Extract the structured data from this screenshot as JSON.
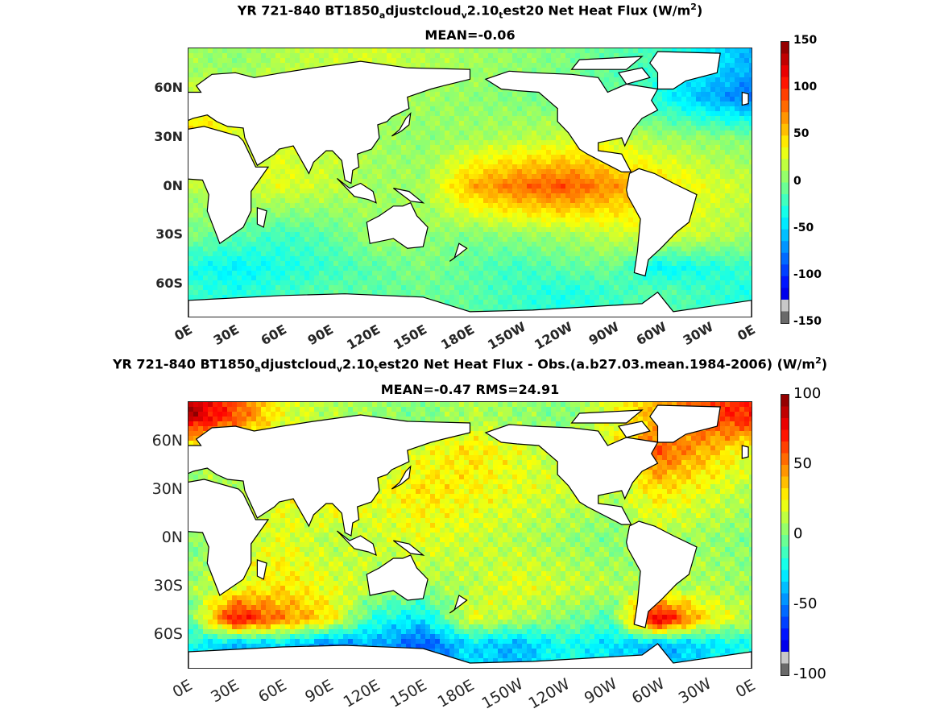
{
  "chart_data": [
    {
      "type": "heatmap",
      "title_parts": {
        "pre": "YR 721-840 BT1850",
        "sub1": "a",
        "mid1": "djustcloud",
        "sub2": "v",
        "mid2": "2.10",
        "sub3": "t",
        "mid3": "est20  Net Heat Flux (W/m",
        "sup": "2",
        "post": ")"
      },
      "subtitle": "MEAN=-0.06",
      "y_ticks": [
        "60N",
        "30N",
        "0N",
        "30S",
        "60S"
      ],
      "y_tick_values": [
        60,
        30,
        0,
        -30,
        -60
      ],
      "ylim": [
        -80,
        85
      ],
      "x_ticks": [
        "0E",
        "30E",
        "60E",
        "90E",
        "120E",
        "150E",
        "180E",
        "150W",
        "120W",
        "90W",
        "60W",
        "30W",
        "0E"
      ],
      "x_tick_values": [
        0,
        30,
        60,
        90,
        120,
        150,
        180,
        210,
        240,
        270,
        300,
        330,
        360
      ],
      "xlim": [
        0,
        360
      ],
      "colorbar": {
        "ticks": [
          "150",
          "100",
          "50",
          "0",
          "-50",
          "-100",
          "-150"
        ],
        "tick_values": [
          150,
          100,
          50,
          0,
          -50,
          -100,
          -150
        ],
        "range": [
          -150,
          150
        ]
      },
      "values": [
        [
          10,
          5,
          15,
          20,
          25,
          15,
          10,
          5,
          0,
          -10,
          -20,
          -40,
          -60
        ],
        [
          20,
          25,
          30,
          20,
          15,
          10,
          5,
          0,
          -5,
          -10,
          -30,
          -60,
          -80
        ],
        [
          60,
          30,
          25,
          20,
          10,
          5,
          10,
          15,
          20,
          25,
          10,
          5,
          0
        ],
        [
          15,
          20,
          30,
          20,
          10,
          10,
          60,
          80,
          90,
          70,
          50,
          30,
          20
        ],
        [
          0,
          -10,
          -20,
          -10,
          10,
          5,
          0,
          5,
          10,
          20,
          30,
          20,
          10
        ],
        [
          -30,
          -40,
          -30,
          -20,
          -10,
          0,
          -10,
          -20,
          -10,
          -5,
          -40,
          -30,
          -20
        ],
        [
          -20,
          -30,
          -20,
          -10,
          -10,
          -5,
          -10,
          -20,
          -30,
          -20,
          -10,
          -20,
          -30
        ]
      ],
      "values_lat": [
        75,
        55,
        30,
        0,
        -30,
        -50,
        -65
      ],
      "values_lon": [
        0,
        30,
        60,
        90,
        120,
        150,
        180,
        210,
        240,
        270,
        300,
        330,
        360
      ]
    },
    {
      "type": "heatmap",
      "title_parts": {
        "pre": "YR 721-840 BT1850",
        "sub1": "a",
        "mid1": "djustcloud",
        "sub2": "v",
        "mid2": "2.10",
        "sub3": "t",
        "mid3": "est20  Net Heat Flux - Obs.(a.b27.03.mean.1984-2006) (W/m",
        "sup": "2",
        "post": ")"
      },
      "subtitle": "MEAN=-0.47 RMS=24.91",
      "y_ticks": [
        "60N",
        "30N",
        "0N",
        "30S",
        "60S"
      ],
      "y_tick_values": [
        60,
        30,
        0,
        -30,
        -60
      ],
      "ylim": [
        -80,
        85
      ],
      "x_ticks": [
        "0E",
        "30E",
        "60E",
        "90E",
        "120E",
        "150E",
        "180E",
        "150W",
        "120W",
        "90W",
        "60W",
        "30W",
        "0E"
      ],
      "x_tick_values": [
        0,
        30,
        60,
        90,
        120,
        150,
        180,
        210,
        240,
        270,
        300,
        330,
        360
      ],
      "xlim": [
        0,
        360
      ],
      "colorbar": {
        "ticks": [
          "100",
          "50",
          "0",
          "-50",
          "-100"
        ],
        "tick_values": [
          100,
          50,
          0,
          -50,
          -100
        ],
        "range": [
          -100,
          100
        ]
      },
      "values": [
        [
          90,
          60,
          20,
          10,
          5,
          0,
          10,
          5,
          0,
          20,
          40,
          60,
          70
        ],
        [
          10,
          5,
          10,
          15,
          10,
          20,
          30,
          20,
          10,
          20,
          60,
          40,
          20
        ],
        [
          5,
          10,
          20,
          30,
          20,
          30,
          25,
          20,
          15,
          10,
          30,
          20,
          10
        ],
        [
          0,
          10,
          20,
          10,
          15,
          20,
          15,
          10,
          5,
          0,
          10,
          5,
          0
        ],
        [
          5,
          20,
          30,
          20,
          10,
          5,
          10,
          20,
          15,
          10,
          5,
          10,
          5
        ],
        [
          -10,
          80,
          50,
          30,
          -20,
          -30,
          20,
          10,
          0,
          -10,
          90,
          30,
          10
        ],
        [
          -20,
          -40,
          -30,
          -50,
          -40,
          -60,
          -30,
          -40,
          -20,
          -30,
          -40,
          -30,
          -20
        ]
      ],
      "values_lat": [
        75,
        55,
        30,
        0,
        -30,
        -50,
        -65
      ],
      "values_lon": [
        0,
        30,
        60,
        90,
        120,
        150,
        180,
        210,
        240,
        270,
        300,
        330,
        360
      ]
    }
  ]
}
